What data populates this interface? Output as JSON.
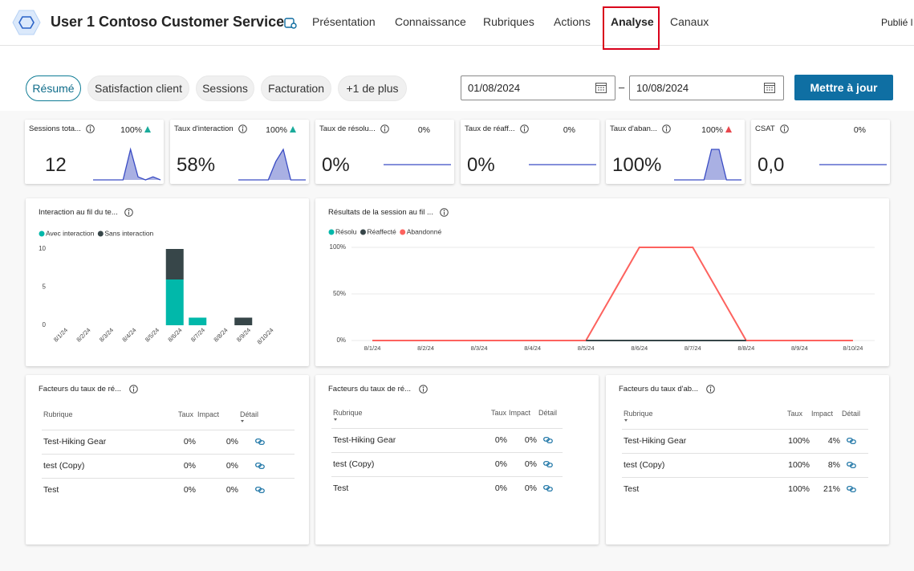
{
  "header": {
    "title": "User 1 Contoso Customer Service",
    "tabs": [
      "Présentation",
      "Connaissance",
      "Rubriques",
      "Actions",
      "Analyse",
      "Canaux"
    ],
    "active_tab": 4,
    "published": "Publié l"
  },
  "filters": {
    "pills": [
      "Résumé",
      "Satisfaction client",
      "Sessions",
      "Facturation",
      "+1 de plus"
    ],
    "active_pill": 0,
    "start_date": "01/08/2024",
    "separator": "–",
    "end_date": "10/08/2024",
    "button": "Mettre à jour"
  },
  "kpis": [
    {
      "title": "Sessions tota...",
      "value": "12",
      "change": "100%",
      "trend": "up",
      "trend_color": "#1aab9b",
      "spark": [
        0,
        0,
        0,
        0,
        0,
        10,
        1,
        0,
        1,
        0
      ]
    },
    {
      "title": "Taux d'interaction",
      "value": "58%",
      "change": "100%",
      "trend": "up",
      "trend_color": "#1aab9b",
      "spark": [
        0,
        0,
        0,
        0,
        0,
        60,
        100,
        0,
        0,
        0
      ]
    },
    {
      "title": "Taux de résolu...",
      "value": "0%",
      "change": "0%",
      "trend": null,
      "trend_color": null,
      "spark": [
        0,
        0,
        0,
        0,
        0,
        0,
        0,
        0,
        0,
        0
      ]
    },
    {
      "title": "Taux de réaff...",
      "value": "0%",
      "change": "0%",
      "trend": null,
      "trend_color": null,
      "spark": [
        0,
        0,
        0,
        0,
        0,
        0,
        0,
        0,
        0,
        0
      ]
    },
    {
      "title": "Taux d'aban...",
      "value": "100%",
      "change": "100%",
      "trend": "up",
      "trend_color": "#e8474d",
      "spark": [
        0,
        0,
        0,
        0,
        0,
        100,
        100,
        0,
        0,
        0
      ]
    },
    {
      "title": "CSAT",
      "value": "0,0",
      "change": "0%",
      "trend": null,
      "trend_color": null,
      "spark": [
        0,
        0,
        0,
        0,
        0,
        0,
        0,
        0,
        0,
        0
      ]
    }
  ],
  "chart_data": [
    {
      "type": "bar",
      "stacked": true,
      "title": "Interaction au fil du te...",
      "categories": [
        "8/1/24",
        "8/2/24",
        "8/3/24",
        "8/4/24",
        "8/5/24",
        "8/6/24",
        "8/7/24",
        "8/8/24",
        "8/9/24",
        "8/10/24"
      ],
      "series": [
        {
          "name": "Avec interaction",
          "color": "#01b8aa",
          "values": [
            0,
            0,
            0,
            0,
            0,
            6,
            1,
            0,
            0,
            0
          ]
        },
        {
          "name": "Sans interaction",
          "color": "#374649",
          "values": [
            0,
            0,
            0,
            0,
            0,
            4,
            0,
            0,
            1,
            0
          ]
        }
      ],
      "ylim": [
        0,
        10
      ],
      "yticks": [
        0,
        5,
        10
      ],
      "grid": false
    },
    {
      "type": "line",
      "title": "Résultats de la session au fil ...",
      "categories": [
        "8/1/24",
        "8/2/24",
        "8/3/24",
        "8/4/24",
        "8/5/24",
        "8/6/24",
        "8/7/24",
        "8/8/24",
        "8/9/24",
        "8/10/24"
      ],
      "series": [
        {
          "name": "Résolu",
          "color": "#01b8aa",
          "values": [
            null,
            null,
            null,
            null,
            null,
            null,
            null,
            null,
            null,
            null
          ]
        },
        {
          "name": "Réaffecté",
          "color": "#374649",
          "values": [
            null,
            null,
            null,
            null,
            0,
            0,
            0,
            0,
            null,
            null
          ]
        },
        {
          "name": "Abandonné",
          "color": "#fd625e",
          "values": [
            0,
            0,
            0,
            0,
            0,
            100,
            100,
            0,
            0,
            0
          ]
        }
      ],
      "ylim": [
        0,
        100
      ],
      "yticks": [
        {
          "value": 0,
          "label": "0%"
        },
        {
          "value": 50,
          "label": "50%"
        },
        {
          "value": 100,
          "label": "100%"
        }
      ],
      "grid": true
    }
  ],
  "tables": [
    {
      "title": "Facteurs du taux de ré...",
      "columns": [
        "Rubrique",
        "Taux",
        "Impact",
        "Détail"
      ],
      "sort_column": 3,
      "rows": [
        [
          "Test-Hiking Gear",
          "0%",
          "0%"
        ],
        [
          "test (Copy)",
          "0%",
          "0%"
        ],
        [
          "Test",
          "0%",
          "0%"
        ]
      ]
    },
    {
      "title": "Facteurs du taux de ré...",
      "columns": [
        "Rubrique",
        "Taux",
        "Impact",
        "Détail"
      ],
      "sort_column": 0,
      "rows": [
        [
          "Test-Hiking Gear",
          "0%",
          "0%"
        ],
        [
          "test (Copy)",
          "0%",
          "0%"
        ],
        [
          "Test",
          "0%",
          "0%"
        ]
      ]
    },
    {
      "title": "Facteurs du taux d'ab...",
      "columns": [
        "Rubrique",
        "Taux",
        "Impact",
        "Détail"
      ],
      "sort_column": 0,
      "rows": [
        [
          "Test-Hiking Gear",
          "100%",
          "4%"
        ],
        [
          "test (Copy)",
          "100%",
          "8%"
        ],
        [
          "Test",
          "100%",
          "21%"
        ]
      ]
    }
  ]
}
